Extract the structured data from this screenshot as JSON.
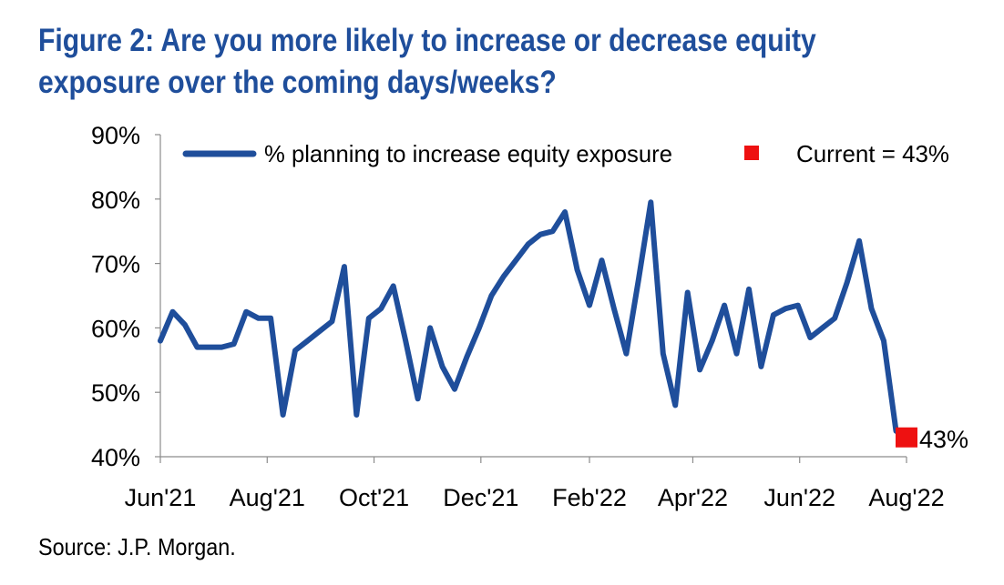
{
  "figure": {
    "title": "Figure 2: Are you more likely to increase or decrease equity exposure over the coming days/weeks?",
    "source": "Source: J.P. Morgan."
  },
  "colors": {
    "title": "#1f4e9b",
    "series": "#1f4e9b",
    "current_marker": "#ee1111"
  },
  "chart_data": {
    "type": "line",
    "title": "Figure 2: Are you more likely to increase or decrease equity exposure over the coming days/weeks?",
    "xlabel": "",
    "ylabel": "",
    "y_unit": "%",
    "ylim": [
      40,
      90
    ],
    "yticks": [
      40,
      50,
      60,
      70,
      80,
      90
    ],
    "ytick_labels": [
      "40%",
      "50%",
      "60%",
      "70%",
      "80%",
      "90%"
    ],
    "xlim": [
      "2021-06-01",
      "2022-08-01"
    ],
    "xticks": [
      "2021-06-01",
      "2021-08-01",
      "2021-10-01",
      "2021-12-01",
      "2022-02-01",
      "2022-04-01",
      "2022-06-01",
      "2022-08-01"
    ],
    "xtick_labels": [
      "Jun'21",
      "Aug'21",
      "Oct'21",
      "Dec'21",
      "Feb'22",
      "Apr'22",
      "Jun'22",
      "Aug'22"
    ],
    "grid": false,
    "legend_position": "top",
    "series": [
      {
        "name": "% planning to increase equity exposure",
        "x": [
          "2021-06-01",
          "2021-06-08",
          "2021-06-15",
          "2021-06-22",
          "2021-06-29",
          "2021-07-06",
          "2021-07-13",
          "2021-07-20",
          "2021-07-27",
          "2021-08-03",
          "2021-08-10",
          "2021-08-17",
          "2021-08-24",
          "2021-08-31",
          "2021-09-07",
          "2021-09-14",
          "2021-09-21",
          "2021-09-28",
          "2021-10-05",
          "2021-10-12",
          "2021-10-19",
          "2021-10-26",
          "2021-11-02",
          "2021-11-09",
          "2021-11-16",
          "2021-11-23",
          "2021-11-30",
          "2021-12-07",
          "2021-12-14",
          "2021-12-21",
          "2021-12-28",
          "2022-01-04",
          "2022-01-11",
          "2022-01-18",
          "2022-01-25",
          "2022-02-01",
          "2022-02-08",
          "2022-02-15",
          "2022-02-22",
          "2022-03-01",
          "2022-03-08",
          "2022-03-15",
          "2022-03-22",
          "2022-03-29",
          "2022-04-05",
          "2022-04-12",
          "2022-04-19",
          "2022-04-26",
          "2022-05-03",
          "2022-05-10",
          "2022-05-17",
          "2022-05-24",
          "2022-05-31",
          "2022-06-07",
          "2022-06-14",
          "2022-06-21",
          "2022-06-28",
          "2022-07-05",
          "2022-07-12",
          "2022-07-19",
          "2022-07-26",
          "2022-08-01"
        ],
        "values": [
          58,
          62.5,
          60.5,
          57,
          57,
          57,
          57.5,
          62.5,
          61.5,
          61.5,
          46.5,
          56.5,
          58,
          59.5,
          61,
          69.5,
          46.5,
          61.5,
          63,
          66.5,
          58,
          49,
          60,
          54,
          50.5,
          55.5,
          60,
          65,
          68,
          70.5,
          73,
          74.5,
          75,
          78,
          69,
          63.5,
          70.5,
          63,
          56,
          67.5,
          79.5,
          56,
          48,
          65.5,
          53.5,
          58,
          63.5,
          56,
          66,
          54,
          62,
          63,
          63.5,
          58.5,
          60,
          61.5,
          67,
          73.5,
          63,
          58,
          44,
          43
        ]
      }
    ],
    "current": {
      "label": "Current = 43%",
      "value": 43,
      "value_label": "43%",
      "x": "2022-08-01"
    }
  }
}
